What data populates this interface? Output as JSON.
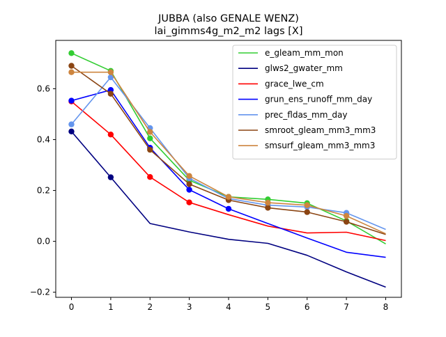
{
  "chart_data": {
    "type": "line",
    "title": "JUBBA (also GENALE WENZ)",
    "subtitle": "lai_gimms4g_m2_m2 lags [X]",
    "xlabel": "",
    "ylabel": "",
    "xlim": [
      -0.4,
      8.4
    ],
    "ylim": [
      -0.22,
      0.79
    ],
    "xticks": [
      0,
      1,
      2,
      3,
      4,
      5,
      6,
      7,
      8
    ],
    "xtick_labels": [
      "0",
      "1",
      "2",
      "3",
      "4",
      "5",
      "6",
      "7",
      "8"
    ],
    "yticks": [
      -0.2,
      0.0,
      0.2,
      0.4,
      0.6
    ],
    "ytick_labels": [
      "−0.2",
      "0.0",
      "0.2",
      "0.4",
      "0.6"
    ],
    "grid": false,
    "legend_position": "top-right",
    "x": [
      0,
      1,
      2,
      3,
      4,
      5,
      6,
      7,
      8
    ],
    "series": [
      {
        "name": "e_gleam_mm_mon",
        "color": "#32cd32",
        "values": [
          0.74,
          0.67,
          0.405,
          0.24,
          0.175,
          0.165,
          0.15,
          0.08,
          -0.01
        ],
        "markers": [
          true,
          true,
          true,
          true,
          true,
          true,
          true,
          true,
          false
        ]
      },
      {
        "name": "glws2_gwater_mm",
        "color": "#000080",
        "values": [
          0.432,
          0.252,
          0.07,
          0.037,
          0.008,
          -0.008,
          -0.055,
          -0.12,
          -0.18
        ],
        "markers": [
          true,
          true,
          false,
          false,
          false,
          false,
          false,
          false,
          false
        ]
      },
      {
        "name": "grace_lwe_cm",
        "color": "#ff0000",
        "values": [
          0.55,
          0.42,
          0.253,
          0.153,
          0.105,
          0.06,
          0.033,
          0.036,
          0.003
        ],
        "markers": [
          true,
          true,
          true,
          true,
          false,
          false,
          false,
          false,
          false
        ]
      },
      {
        "name": "grun_ens_runoff_mm_day",
        "color": "#0000ff",
        "values": [
          0.553,
          0.595,
          0.368,
          0.203,
          0.128,
          0.07,
          0.013,
          -0.043,
          -0.063
        ],
        "markers": [
          true,
          true,
          true,
          true,
          true,
          false,
          false,
          false,
          false
        ]
      },
      {
        "name": "prec_fldas_mm_day",
        "color": "#6495ed",
        "values": [
          0.46,
          0.645,
          0.445,
          0.248,
          0.168,
          0.142,
          0.135,
          0.112,
          0.047
        ],
        "markers": [
          true,
          true,
          true,
          true,
          true,
          true,
          true,
          true,
          false
        ]
      },
      {
        "name": "smroot_gleam_mm3_mm3",
        "color": "#8b4513",
        "values": [
          0.69,
          0.58,
          0.36,
          0.225,
          0.162,
          0.132,
          0.115,
          0.077,
          0.027
        ],
        "markers": [
          true,
          true,
          true,
          true,
          true,
          true,
          true,
          true,
          false
        ]
      },
      {
        "name": "smsurf_gleam_mm3_mm3",
        "color": "#cd853f",
        "values": [
          0.665,
          0.665,
          0.43,
          0.257,
          0.175,
          0.152,
          0.142,
          0.1,
          0.03
        ],
        "markers": [
          true,
          true,
          true,
          true,
          true,
          true,
          true,
          true,
          false
        ]
      }
    ]
  }
}
